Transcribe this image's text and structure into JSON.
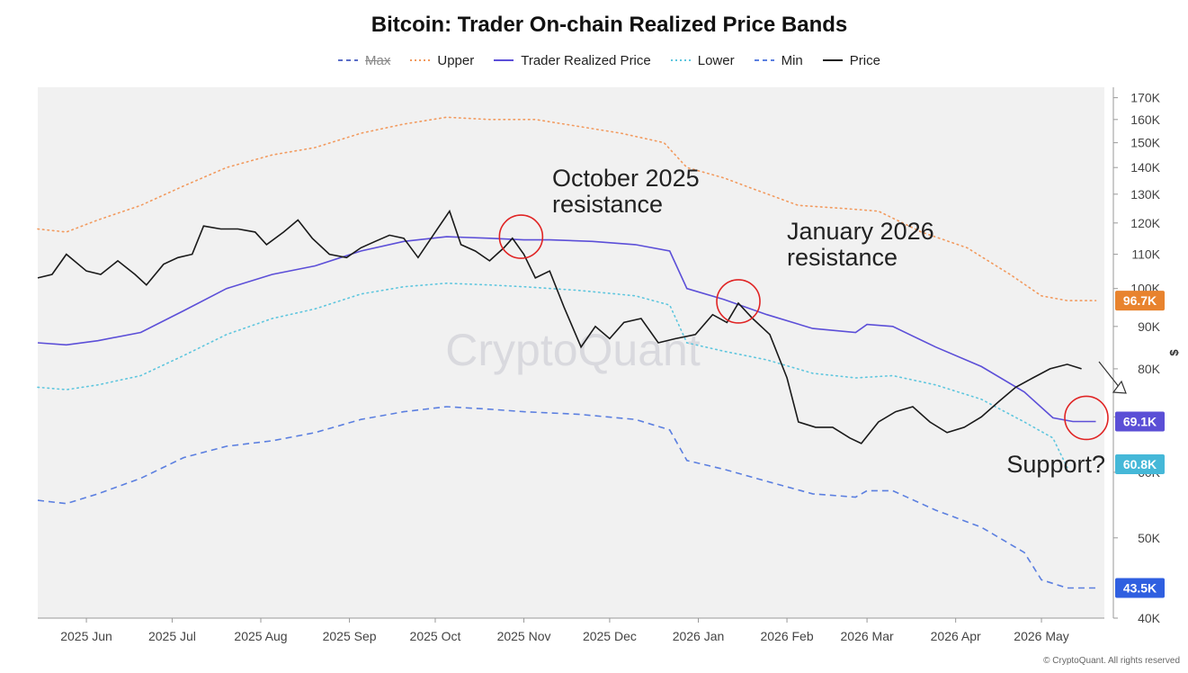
{
  "chart_data": {
    "type": "line",
    "title": "Bitcoin: Trader On-chain Realized Price Bands",
    "legend_position": "top-center",
    "y_unit": "$",
    "y_scale": "log",
    "ylim": [
      40,
      175
    ],
    "y_ticks": [
      {
        "value": 40,
        "label": "40K"
      },
      {
        "value": 50,
        "label": "50K"
      },
      {
        "value": 60,
        "label": "60K"
      },
      {
        "value": 70,
        "label": "70K"
      },
      {
        "value": 80,
        "label": "80K"
      },
      {
        "value": 90,
        "label": "90K"
      },
      {
        "value": 100,
        "label": "100K"
      },
      {
        "value": 110,
        "label": "110K"
      },
      {
        "value": 120,
        "label": "120K"
      },
      {
        "value": 130,
        "label": "130K"
      },
      {
        "value": 140,
        "label": "140K"
      },
      {
        "value": 150,
        "label": "150K"
      },
      {
        "value": 160,
        "label": "160K"
      },
      {
        "value": 170,
        "label": "170K"
      }
    ],
    "xlim": [
      "2025-05-15",
      "2026-05-23"
    ],
    "x_ticks": [
      {
        "date": "2025-06-01",
        "label": "2025 Jun"
      },
      {
        "date": "2025-07-01",
        "label": "2025 Jul"
      },
      {
        "date": "2025-08-01",
        "label": "2025 Aug"
      },
      {
        "date": "2025-09-01",
        "label": "2025 Sep"
      },
      {
        "date": "2025-10-01",
        "label": "2025 Oct"
      },
      {
        "date": "2025-11-01",
        "label": "2025 Nov"
      },
      {
        "date": "2025-12-01",
        "label": "2025 Dec"
      },
      {
        "date": "2026-01-01",
        "label": "2026 Jan"
      },
      {
        "date": "2026-02-01",
        "label": "2026 Feb"
      },
      {
        "date": "2026-03-01",
        "label": "2026 Mar"
      },
      {
        "date": "2026-04-01",
        "label": "2026 Apr"
      },
      {
        "date": "2026-05-01",
        "label": "2026 May"
      }
    ],
    "series": [
      {
        "name": "Max",
        "color": "#5b6ec8",
        "style": "dashed",
        "hidden": true,
        "points": []
      },
      {
        "name": "Upper",
        "color": "#f29a5e",
        "style": "dotted",
        "points": [
          [
            "2025-05-15",
            118
          ],
          [
            "2025-05-25",
            117
          ],
          [
            "2025-06-05",
            121
          ],
          [
            "2025-06-20",
            126
          ],
          [
            "2025-07-05",
            133
          ],
          [
            "2025-07-20",
            140
          ],
          [
            "2025-08-05",
            145
          ],
          [
            "2025-08-20",
            148
          ],
          [
            "2025-09-05",
            154
          ],
          [
            "2025-09-20",
            158
          ],
          [
            "2025-10-05",
            161
          ],
          [
            "2025-10-20",
            160
          ],
          [
            "2025-11-05",
            160
          ],
          [
            "2025-11-20",
            157
          ],
          [
            "2025-12-05",
            154
          ],
          [
            "2025-12-20",
            150
          ],
          [
            "2025-12-28",
            140
          ],
          [
            "2026-01-10",
            136
          ],
          [
            "2026-01-20",
            132
          ],
          [
            "2026-02-05",
            126
          ],
          [
            "2026-02-20",
            125
          ],
          [
            "2026-03-05",
            124
          ],
          [
            "2026-03-20",
            117
          ],
          [
            "2026-04-05",
            112
          ],
          [
            "2026-04-20",
            104
          ],
          [
            "2026-05-01",
            98
          ],
          [
            "2026-05-10",
            96.7
          ],
          [
            "2026-05-20",
            96.7
          ]
        ]
      },
      {
        "name": "Trader Realized Price",
        "color": "#5c4fd8",
        "style": "solid",
        "points": [
          [
            "2025-05-15",
            86
          ],
          [
            "2025-05-25",
            85.5
          ],
          [
            "2025-06-05",
            86.5
          ],
          [
            "2025-06-20",
            88.5
          ],
          [
            "2025-07-05",
            94
          ],
          [
            "2025-07-20",
            100
          ],
          [
            "2025-08-05",
            104
          ],
          [
            "2025-08-20",
            106.5
          ],
          [
            "2025-09-05",
            111
          ],
          [
            "2025-09-20",
            114
          ],
          [
            "2025-10-05",
            115.5
          ],
          [
            "2025-10-20",
            115
          ],
          [
            "2025-11-01",
            114.5
          ],
          [
            "2025-11-10",
            114.5
          ],
          [
            "2025-11-25",
            114
          ],
          [
            "2025-12-10",
            113
          ],
          [
            "2025-12-22",
            111
          ],
          [
            "2025-12-28",
            100
          ],
          [
            "2026-01-10",
            97
          ],
          [
            "2026-01-25",
            93
          ],
          [
            "2026-02-10",
            89.5
          ],
          [
            "2026-02-25",
            88.5
          ],
          [
            "2026-03-01",
            90.5
          ],
          [
            "2026-03-10",
            90
          ],
          [
            "2026-03-25",
            85
          ],
          [
            "2026-04-10",
            80.5
          ],
          [
            "2026-04-25",
            75
          ],
          [
            "2026-05-05",
            69.8
          ],
          [
            "2026-05-12",
            69.1
          ],
          [
            "2026-05-20",
            69.1
          ]
        ]
      },
      {
        "name": "Lower",
        "color": "#5ec6de",
        "style": "dotted",
        "points": [
          [
            "2025-05-15",
            76
          ],
          [
            "2025-05-25",
            75.5
          ],
          [
            "2025-06-05",
            76.5
          ],
          [
            "2025-06-20",
            78.5
          ],
          [
            "2025-07-05",
            83
          ],
          [
            "2025-07-20",
            88
          ],
          [
            "2025-08-05",
            92
          ],
          [
            "2025-08-20",
            94.5
          ],
          [
            "2025-09-05",
            98.5
          ],
          [
            "2025-09-20",
            100.5
          ],
          [
            "2025-10-05",
            101.5
          ],
          [
            "2025-10-20",
            101
          ],
          [
            "2025-11-01",
            100.5
          ],
          [
            "2025-11-20",
            99.5
          ],
          [
            "2025-12-10",
            98
          ],
          [
            "2025-12-22",
            95.5
          ],
          [
            "2025-12-28",
            86
          ],
          [
            "2026-01-10",
            84
          ],
          [
            "2026-01-25",
            82
          ],
          [
            "2026-02-10",
            79
          ],
          [
            "2026-02-25",
            78
          ],
          [
            "2026-03-10",
            78.5
          ],
          [
            "2026-03-25",
            76.5
          ],
          [
            "2026-04-10",
            73.5
          ],
          [
            "2026-04-25",
            69
          ],
          [
            "2026-05-05",
            66
          ],
          [
            "2026-05-10",
            60.8
          ]
        ]
      },
      {
        "name": "Min",
        "color": "#5b7fe0",
        "style": "dashed",
        "points": [
          [
            "2025-05-15",
            55.5
          ],
          [
            "2025-05-25",
            55
          ],
          [
            "2025-06-05",
            56.5
          ],
          [
            "2025-06-20",
            59
          ],
          [
            "2025-07-05",
            62.5
          ],
          [
            "2025-07-20",
            64.5
          ],
          [
            "2025-08-05",
            65.5
          ],
          [
            "2025-08-20",
            67
          ],
          [
            "2025-09-05",
            69.5
          ],
          [
            "2025-09-20",
            71
          ],
          [
            "2025-10-05",
            72
          ],
          [
            "2025-10-20",
            71.5
          ],
          [
            "2025-11-01",
            71
          ],
          [
            "2025-11-20",
            70.5
          ],
          [
            "2025-12-10",
            69.5
          ],
          [
            "2025-12-22",
            67.5
          ],
          [
            "2025-12-28",
            62
          ],
          [
            "2026-01-10",
            60.5
          ],
          [
            "2026-01-25",
            58.5
          ],
          [
            "2026-02-10",
            56.5
          ],
          [
            "2026-02-25",
            56
          ],
          [
            "2026-03-01",
            57
          ],
          [
            "2026-03-10",
            57
          ],
          [
            "2026-03-25",
            54
          ],
          [
            "2026-04-10",
            51.5
          ],
          [
            "2026-04-25",
            48
          ],
          [
            "2026-05-01",
            44.5
          ],
          [
            "2026-05-10",
            43.5
          ],
          [
            "2026-05-20",
            43.5
          ]
        ]
      },
      {
        "name": "Price",
        "color": "#1a1a1a",
        "style": "solid",
        "points": [
          [
            "2025-05-15",
            103
          ],
          [
            "2025-05-20",
            104
          ],
          [
            "2025-05-25",
            110
          ],
          [
            "2025-06-01",
            105
          ],
          [
            "2025-06-06",
            104
          ],
          [
            "2025-06-12",
            108
          ],
          [
            "2025-06-18",
            104
          ],
          [
            "2025-06-22",
            101
          ],
          [
            "2025-06-28",
            107
          ],
          [
            "2025-07-03",
            109
          ],
          [
            "2025-07-08",
            110
          ],
          [
            "2025-07-12",
            119
          ],
          [
            "2025-07-18",
            118
          ],
          [
            "2025-07-24",
            118
          ],
          [
            "2025-07-30",
            117
          ],
          [
            "2025-08-03",
            113
          ],
          [
            "2025-08-09",
            117
          ],
          [
            "2025-08-14",
            121
          ],
          [
            "2025-08-19",
            115
          ],
          [
            "2025-08-25",
            110
          ],
          [
            "2025-08-31",
            109
          ],
          [
            "2025-09-05",
            112
          ],
          [
            "2025-09-10",
            114
          ],
          [
            "2025-09-15",
            116
          ],
          [
            "2025-09-20",
            115
          ],
          [
            "2025-09-25",
            109
          ],
          [
            "2025-10-01",
            117
          ],
          [
            "2025-10-06",
            124
          ],
          [
            "2025-10-10",
            113
          ],
          [
            "2025-10-15",
            111
          ],
          [
            "2025-10-20",
            108
          ],
          [
            "2025-10-25",
            112
          ],
          [
            "2025-10-28",
            115
          ],
          [
            "2025-11-01",
            110
          ],
          [
            "2025-11-05",
            103
          ],
          [
            "2025-11-10",
            105
          ],
          [
            "2025-11-15",
            95
          ],
          [
            "2025-11-21",
            85
          ],
          [
            "2025-11-26",
            90
          ],
          [
            "2025-12-01",
            87
          ],
          [
            "2025-12-06",
            91
          ],
          [
            "2025-12-12",
            92
          ],
          [
            "2025-12-18",
            86
          ],
          [
            "2025-12-24",
            87
          ],
          [
            "2025-12-31",
            88
          ],
          [
            "2026-01-06",
            93
          ],
          [
            "2026-01-11",
            91
          ],
          [
            "2026-01-15",
            96
          ],
          [
            "2026-01-20",
            92
          ],
          [
            "2026-01-26",
            88
          ],
          [
            "2026-02-01",
            78
          ],
          [
            "2026-02-05",
            69
          ],
          [
            "2026-02-11",
            68
          ],
          [
            "2026-02-17",
            68
          ],
          [
            "2026-02-23",
            66
          ],
          [
            "2026-02-27",
            65
          ],
          [
            "2026-03-05",
            69
          ],
          [
            "2026-03-11",
            71
          ],
          [
            "2026-03-17",
            72
          ],
          [
            "2026-03-23",
            69
          ],
          [
            "2026-03-29",
            67
          ],
          [
            "2026-04-04",
            68
          ],
          [
            "2026-04-10",
            70
          ],
          [
            "2026-04-16",
            73
          ],
          [
            "2026-04-22",
            76
          ],
          [
            "2026-04-28",
            78
          ],
          [
            "2026-05-04",
            80
          ],
          [
            "2026-05-10",
            81
          ],
          [
            "2026-05-15",
            80
          ]
        ]
      }
    ],
    "badges": [
      {
        "label": "96.7K",
        "value": 96.7,
        "color": "#e8832e"
      },
      {
        "label": "69.1K",
        "value": 69.1,
        "color": "#5b4fd6"
      },
      {
        "label": "60.8K",
        "value": 60.8,
        "color": "#45b8d8"
      },
      {
        "label": "43.5K",
        "value": 43.5,
        "color": "#2f5fe0"
      }
    ],
    "annotations": [
      {
        "lines": [
          "October 2025",
          "resistance"
        ],
        "date": "2025-10-31",
        "value": 116
      },
      {
        "lines": [
          "January 2026",
          "resistance"
        ],
        "date": "2026-01-15",
        "value": 97
      },
      {
        "lines": [
          "Support?"
        ],
        "date": "2026-05-10",
        "value": 69
      }
    ],
    "watermark": "CryptoQuant"
  },
  "copyright": "© CryptoQuant. All rights reserved"
}
